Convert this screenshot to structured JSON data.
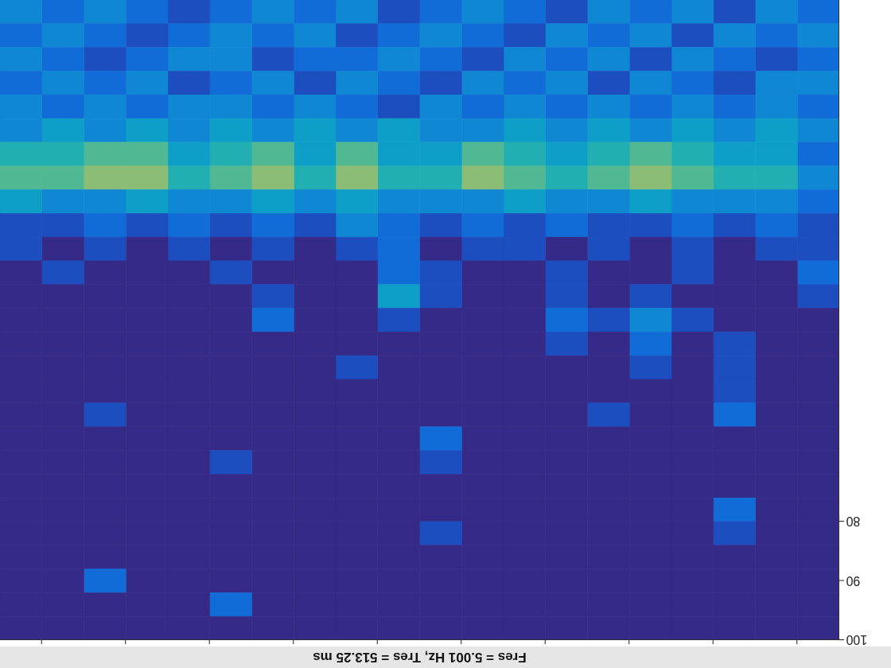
{
  "chart_data": {
    "type": "heatmap",
    "title": "Fres = 5.001  Hz, Tres = 513.25 ms",
    "xlim": [
      0,
      10
    ],
    "xticks": [
      0.5,
      1.5,
      2.5,
      3.5,
      4.5,
      5.5,
      6.5,
      7.5,
      8.5,
      9.5
    ],
    "ylim": [
      -8,
      100
    ],
    "yticks": [
      80,
      90,
      100
    ],
    "tick_labels": "y",
    "zlim": [
      0,
      11
    ],
    "x_bins": [
      0,
      0.5,
      1,
      1.5,
      2,
      2.5,
      3,
      3.5,
      4,
      4.5,
      5,
      5.5,
      6,
      6.5,
      7,
      7.5,
      8,
      8.5,
      9,
      9.5,
      10
    ],
    "y_bins": [
      -8,
      -4,
      0,
      4,
      8,
      12,
      16,
      20,
      24,
      28,
      32,
      36,
      40,
      44,
      48,
      52,
      56,
      60,
      64,
      68,
      72,
      76,
      80,
      84,
      88,
      92,
      96,
      100
    ],
    "z": [
      [
        2,
        3,
        1,
        3,
        2,
        3,
        1,
        2,
        3,
        2,
        1,
        3,
        2,
        3,
        2,
        1,
        2,
        3,
        2,
        3
      ],
      [
        3,
        2,
        3,
        1,
        3,
        2,
        3,
        1,
        2,
        3,
        2,
        1,
        3,
        2,
        3,
        2,
        1,
        2,
        3,
        2
      ],
      [
        2,
        1,
        2,
        3,
        1,
        3,
        2,
        3,
        1,
        2,
        3,
        2,
        2,
        1,
        3,
        3,
        2,
        1,
        2,
        3
      ],
      [
        3,
        3,
        1,
        2,
        3,
        1,
        3,
        2,
        3,
        1,
        2,
        3,
        1,
        3,
        2,
        1,
        3,
        2,
        3,
        2
      ],
      [
        2,
        3,
        2,
        3,
        2,
        3,
        2,
        3,
        2,
        3,
        1,
        2,
        3,
        2,
        3,
        3,
        2,
        3,
        2,
        3
      ],
      [
        3,
        4,
        3,
        4,
        3,
        4,
        3,
        4,
        3,
        3,
        4,
        3,
        4,
        3,
        4,
        3,
        4,
        3,
        4,
        3
      ],
      [
        2,
        4,
        4,
        5,
        6,
        5,
        4,
        5,
        6,
        4,
        4,
        6,
        4,
        6,
        5,
        4,
        6,
        6,
        5,
        5
      ],
      [
        3,
        5,
        5,
        6,
        7,
        6,
        5,
        6,
        7,
        5,
        5,
        7,
        5,
        7,
        6,
        5,
        7,
        7,
        6,
        6
      ],
      [
        2,
        3,
        3,
        3,
        4,
        3,
        3,
        4,
        3,
        3,
        3,
        4,
        3,
        4,
        3,
        3,
        4,
        3,
        3,
        4
      ],
      [
        1,
        2,
        1,
        2,
        1,
        1,
        2,
        1,
        2,
        1,
        2,
        3,
        1,
        2,
        1,
        2,
        1,
        2,
        1,
        1
      ],
      [
        1,
        1,
        0,
        1,
        0,
        1,
        0,
        1,
        1,
        0,
        2,
        1,
        0,
        1,
        0,
        1,
        0,
        1,
        0,
        1
      ],
      [
        2,
        0,
        0,
        1,
        0,
        0,
        1,
        0,
        0,
        1,
        2,
        0,
        0,
        0,
        1,
        0,
        0,
        0,
        1,
        0
      ],
      [
        1,
        0,
        0,
        0,
        1,
        0,
        1,
        0,
        0,
        1,
        4,
        0,
        0,
        1,
        0,
        0,
        0,
        0,
        0,
        0
      ],
      [
        0,
        0,
        0,
        1,
        3,
        1,
        2,
        0,
        0,
        0,
        1,
        0,
        0,
        2,
        0,
        0,
        0,
        0,
        0,
        0
      ],
      [
        0,
        0,
        1,
        0,
        2,
        0,
        1,
        0,
        0,
        0,
        0,
        0,
        0,
        0,
        0,
        0,
        0,
        0,
        0,
        0
      ],
      [
        0,
        0,
        1,
        0,
        1,
        0,
        0,
        0,
        0,
        0,
        0,
        1,
        0,
        0,
        0,
        0,
        0,
        0,
        0,
        0
      ],
      [
        0,
        0,
        1,
        0,
        0,
        0,
        0,
        0,
        0,
        0,
        0,
        0,
        0,
        0,
        0,
        0,
        0,
        0,
        0,
        0
      ],
      [
        0,
        0,
        2,
        0,
        0,
        1,
        0,
        0,
        0,
        0,
        0,
        0,
        0,
        0,
        0,
        0,
        0,
        1,
        0,
        0
      ],
      [
        0,
        0,
        0,
        0,
        0,
        0,
        0,
        0,
        0,
        2,
        0,
        0,
        0,
        0,
        0,
        0,
        0,
        0,
        0,
        0
      ],
      [
        0,
        0,
        0,
        0,
        0,
        0,
        0,
        0,
        0,
        1,
        0,
        0,
        0,
        0,
        1,
        0,
        0,
        0,
        0,
        0
      ],
      [
        0,
        0,
        0,
        0,
        0,
        0,
        0,
        0,
        0,
        0,
        0,
        0,
        0,
        0,
        0,
        0,
        0,
        0,
        0,
        0
      ],
      [
        0,
        0,
        2,
        0,
        0,
        0,
        0,
        0,
        0,
        0,
        0,
        0,
        0,
        0,
        0,
        0,
        0,
        0,
        0,
        0
      ],
      [
        0,
        0,
        1,
        0,
        0,
        0,
        0,
        0,
        0,
        1,
        0,
        0,
        0,
        0,
        0,
        0,
        0,
        0,
        0,
        0
      ],
      [
        0,
        0,
        0,
        0,
        0,
        0,
        0,
        0,
        0,
        0,
        0,
        0,
        0,
        0,
        0,
        0,
        0,
        0,
        0,
        0
      ],
      [
        0,
        0,
        0,
        0,
        0,
        0,
        0,
        0,
        0,
        0,
        0,
        0,
        0,
        0,
        0,
        0,
        0,
        2,
        0,
        0
      ],
      [
        0,
        0,
        0,
        0,
        0,
        0,
        0,
        0,
        0,
        0,
        0,
        0,
        0,
        0,
        2,
        0,
        0,
        0,
        0,
        0
      ],
      [
        0,
        0,
        0,
        0,
        0,
        0,
        0,
        0,
        0,
        0,
        0,
        0,
        0,
        0,
        0,
        0,
        0,
        0,
        0,
        0
      ]
    ]
  }
}
